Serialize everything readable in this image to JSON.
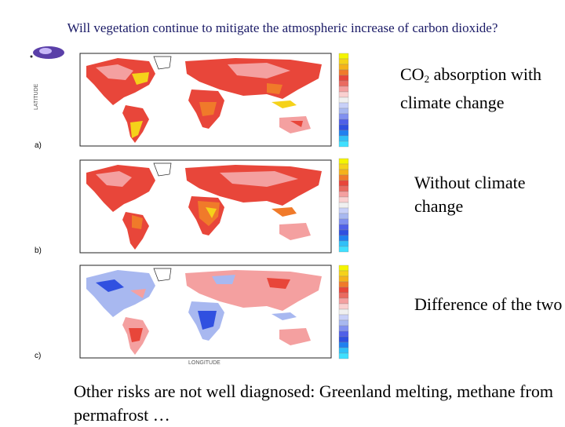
{
  "title": "Will vegetation continue to mitigate the atmospheric increase of carbon dioxide?",
  "panels": [
    {
      "label": "a)",
      "caption_top": "CO",
      "caption_sub": "2",
      "caption_rest": " absorption with climate change"
    },
    {
      "label": "b)",
      "caption": "Without climate change"
    },
    {
      "label": "c)",
      "caption": "Difference of the two"
    }
  ],
  "bottom_text": "Other risks are not well diagnosed: Greenland melting, methane from permafrost …",
  "colors": {
    "title": "#1a1a66",
    "ocean": "#ffffff",
    "red": "#e8463a",
    "pink": "#f4a0a0",
    "orange": "#f07a2a",
    "yellow": "#f5d21a",
    "lightblue": "#a8b8f0",
    "blue": "#3050e0"
  },
  "colorbar": [
    "#f5f500",
    "#f5d21a",
    "#f5b21a",
    "#f07a2a",
    "#e8463a",
    "#ea6a60",
    "#f4a0a0",
    "#fad0d0",
    "#f0f0f0",
    "#c8d0f8",
    "#a8b8f0",
    "#8090f0",
    "#5060e8",
    "#3050e0",
    "#2080f0",
    "#30c0f8",
    "#40e0ff"
  ],
  "axis": {
    "xlabel": "LONGITUDE",
    "ylabel": "LATITUDE"
  }
}
